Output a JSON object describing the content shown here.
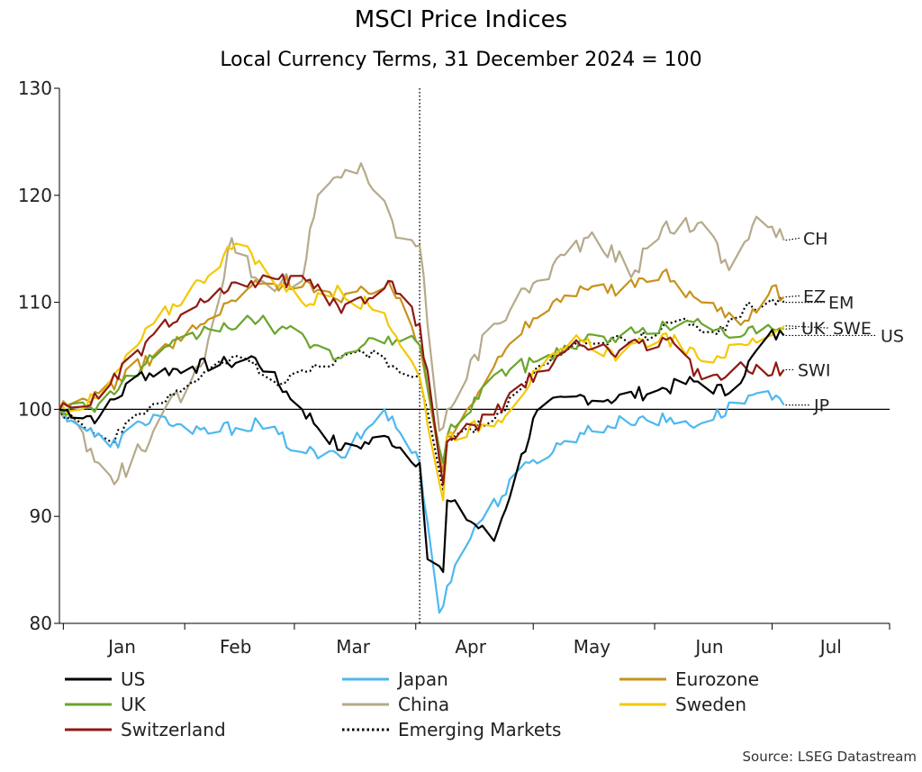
{
  "chart_data": {
    "type": "line",
    "title": "MSCI Price Indices",
    "subtitle": "Local Currency Terms, 31 December 2024 = 100",
    "source": "Source: LSEG Datastream",
    "ylim": [
      80,
      130
    ],
    "yticks": [
      80,
      90,
      100,
      110,
      120,
      130
    ],
    "xlim": [
      "2024-12-31",
      "2025-07-31"
    ],
    "month_labels": [
      {
        "label": "Jan",
        "date": "2025-01-16"
      },
      {
        "label": "Feb",
        "date": "2025-02-14"
      },
      {
        "label": "Mar",
        "date": "2025-03-16"
      },
      {
        "label": "Apr",
        "date": "2025-04-15"
      },
      {
        "label": "May",
        "date": "2025-05-16"
      },
      {
        "label": "Jun",
        "date": "2025-06-15"
      },
      {
        "label": "Jul",
        "date": "2025-07-16"
      }
    ],
    "month_ticks": [
      "2025-01-01",
      "2025-02-01",
      "2025-03-01",
      "2025-04-01",
      "2025-05-01",
      "2025-06-01",
      "2025-07-01",
      "2025-07-31"
    ],
    "reference_line": 100,
    "vertical_marker": "2025-04-02",
    "legend_placement": "bottom",
    "series": [
      {
        "name": "US",
        "end_label": "US",
        "color": "#000000",
        "dash": "solid",
        "dates": [
          "2024-12-31",
          "2025-01-10",
          "2025-01-20",
          "2025-02-03",
          "2025-02-12",
          "2025-02-19",
          "2025-03-03",
          "2025-03-13",
          "2025-03-25",
          "2025-04-02",
          "2025-04-04",
          "2025-04-08",
          "2025-04-09",
          "2025-04-21",
          "2025-05-02",
          "2025-05-12",
          "2025-05-20",
          "2025-06-02",
          "2025-06-11",
          "2025-06-20",
          "2025-06-30",
          "2025-07-04"
        ],
        "values": [
          100,
          99.2,
          103.2,
          104.0,
          104.3,
          104.8,
          100.0,
          96.2,
          97.4,
          95.0,
          86.0,
          84.8,
          91.5,
          87.7,
          99.9,
          101.2,
          100.9,
          101.8,
          102.6,
          101.5,
          106.9,
          106.9
        ]
      },
      {
        "name": "Japan",
        "end_label": "JP",
        "color": "#4db8f0",
        "dash": "solid",
        "dates": [
          "2024-12-31",
          "2025-01-13",
          "2025-01-24",
          "2025-02-03",
          "2025-02-20",
          "2025-03-03",
          "2025-03-13",
          "2025-03-24",
          "2025-04-02",
          "2025-04-07",
          "2025-04-09",
          "2025-04-16",
          "2025-04-30",
          "2025-05-13",
          "2025-05-28",
          "2025-06-13",
          "2025-06-27",
          "2025-07-04"
        ],
        "values": [
          100,
          96.5,
          99.5,
          97.7,
          98.7,
          96.0,
          95.5,
          100.0,
          95.0,
          81.0,
          83.5,
          89.0,
          95.0,
          97.8,
          99.2,
          98.7,
          101.5,
          100.4
        ]
      },
      {
        "name": "Eurozone",
        "end_label": "EZ",
        "color": "#c8921c",
        "dash": "solid",
        "dates": [
          "2024-12-31",
          "2025-01-10",
          "2025-01-24",
          "2025-02-06",
          "2025-02-18",
          "2025-03-04",
          "2025-03-13",
          "2025-03-25",
          "2025-04-02",
          "2025-04-08",
          "2025-04-09",
          "2025-04-21",
          "2025-05-01",
          "2025-05-13",
          "2025-05-23",
          "2025-06-03",
          "2025-06-13",
          "2025-06-24",
          "2025-07-01",
          "2025-07-04"
        ],
        "values": [
          100,
          101.5,
          105.0,
          108.0,
          111.5,
          112.0,
          110.0,
          112.0,
          106.0,
          94.2,
          97.5,
          104.0,
          108.5,
          111.5,
          111.0,
          112.8,
          110.0,
          108.3,
          111.5,
          110.5
        ]
      },
      {
        "name": "UK",
        "end_label": "UK",
        "color": "#6aa52c",
        "dash": "solid",
        "dates": [
          "2024-12-31",
          "2025-01-10",
          "2025-01-24",
          "2025-02-07",
          "2025-02-20",
          "2025-03-04",
          "2025-03-13",
          "2025-03-25",
          "2025-04-02",
          "2025-04-08",
          "2025-04-09",
          "2025-04-21",
          "2025-05-02",
          "2025-05-13",
          "2025-05-23",
          "2025-06-04",
          "2025-06-13",
          "2025-06-24",
          "2025-07-04"
        ],
        "values": [
          100,
          100.5,
          104.8,
          107.5,
          108.3,
          106.5,
          104.8,
          106.8,
          106.0,
          95.0,
          97.5,
          103.2,
          104.5,
          106.5,
          106.8,
          107.8,
          108.0,
          107.0,
          107.5
        ]
      },
      {
        "name": "China",
        "end_label": "CH",
        "color": "#b5aa8a",
        "dash": "solid",
        "dates": [
          "2024-12-31",
          "2025-01-10",
          "2025-01-14",
          "2025-01-24",
          "2025-02-05",
          "2025-02-13",
          "2025-02-20",
          "2025-03-03",
          "2025-03-07",
          "2025-03-18",
          "2025-03-28",
          "2025-04-02",
          "2025-04-07",
          "2025-04-09",
          "2025-04-21",
          "2025-05-02",
          "2025-05-14",
          "2025-05-27",
          "2025-06-03",
          "2025-06-13",
          "2025-06-20",
          "2025-06-27",
          "2025-07-04"
        ],
        "values": [
          100,
          95.0,
          93.0,
          98.0,
          104.0,
          116.0,
          112.0,
          112.0,
          120.0,
          123.0,
          116.0,
          115.3,
          98.0,
          100.0,
          108.0,
          112.0,
          116.0,
          113.0,
          117.0,
          117.5,
          113.0,
          118.0,
          115.8
        ]
      },
      {
        "name": "Sweden",
        "end_label": "SWE",
        "color": "#f5c800",
        "dash": "solid",
        "dates": [
          "2024-12-31",
          "2025-01-10",
          "2025-01-24",
          "2025-02-05",
          "2025-02-14",
          "2025-03-03",
          "2025-03-13",
          "2025-03-24",
          "2025-04-02",
          "2025-04-08",
          "2025-04-09",
          "2025-04-22",
          "2025-05-02",
          "2025-05-13",
          "2025-05-23",
          "2025-06-03",
          "2025-06-13",
          "2025-06-24",
          "2025-07-04"
        ],
        "values": [
          100,
          101.0,
          108.0,
          112.0,
          115.5,
          110.0,
          111.0,
          109.0,
          103.0,
          91.5,
          97.5,
          99.0,
          103.5,
          106.5,
          105.0,
          107.0,
          104.5,
          106.0,
          107.8
        ]
      },
      {
        "name": "Switzerland",
        "end_label": "SWI",
        "color": "#8e1a12",
        "dash": "solid",
        "dates": [
          "2024-12-31",
          "2025-01-10",
          "2025-01-24",
          "2025-02-06",
          "2025-02-18",
          "2025-03-04",
          "2025-03-13",
          "2025-03-25",
          "2025-04-02",
          "2025-04-08",
          "2025-04-09",
          "2025-04-21",
          "2025-05-02",
          "2025-05-13",
          "2025-05-23",
          "2025-06-04",
          "2025-06-13",
          "2025-06-24",
          "2025-07-04"
        ],
        "values": [
          100,
          101.0,
          107.0,
          110.0,
          112.0,
          112.0,
          109.0,
          112.0,
          108.0,
          93.0,
          97.0,
          99.5,
          103.5,
          106.0,
          105.5,
          106.5,
          102.8,
          104.0,
          103.7
        ]
      },
      {
        "name": "Emerging Markets",
        "end_label": "EM",
        "color": "#000000",
        "dash": "dotted",
        "dates": [
          "2024-12-31",
          "2025-01-13",
          "2025-01-24",
          "2025-02-05",
          "2025-02-14",
          "2025-02-26",
          "2025-03-07",
          "2025-03-18",
          "2025-04-02",
          "2025-04-08",
          "2025-04-09",
          "2025-04-21",
          "2025-05-02",
          "2025-05-14",
          "2025-05-27",
          "2025-06-09",
          "2025-06-17",
          "2025-06-24",
          "2025-07-04"
        ],
        "values": [
          100,
          97.0,
          100.5,
          103.0,
          105.0,
          102.5,
          104.0,
          105.5,
          103.0,
          92.5,
          97.0,
          99.0,
          104.0,
          106.0,
          106.5,
          108.5,
          107.0,
          109.5,
          110.0
        ]
      }
    ]
  }
}
